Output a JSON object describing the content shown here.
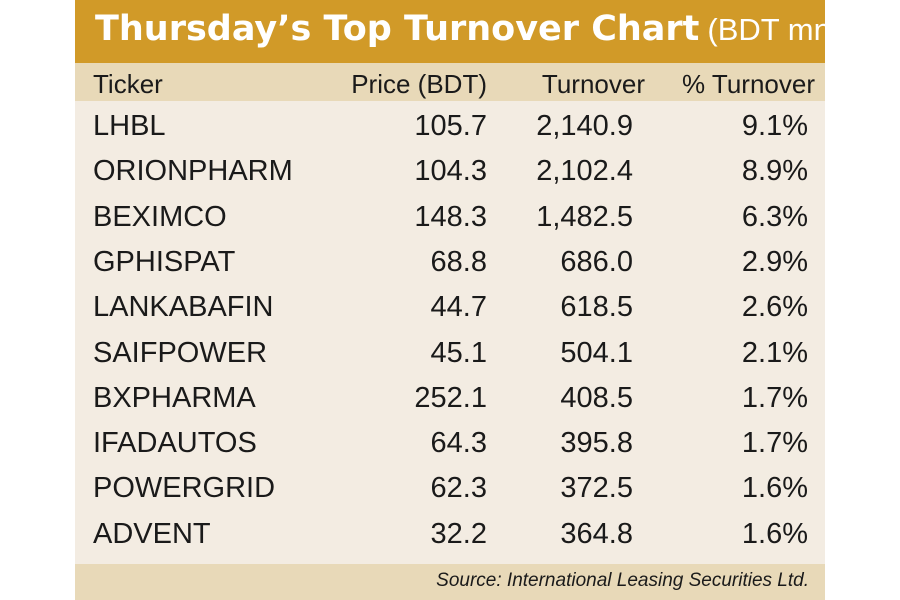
{
  "header": {
    "title": "Thursday’s Top Turnover Chart",
    "unit": "(BDT mn)"
  },
  "chart_data": {
    "type": "table",
    "title": "Thursday’s Top Turnover Chart",
    "unit": "(BDT mn)",
    "columns": [
      "Ticker",
      "Price (BDT)",
      "Turnover",
      "% Turnover"
    ],
    "rows": [
      [
        "LHBL",
        "105.7",
        "2,140.9",
        "9.1%"
      ],
      [
        "ORIONPHARM",
        "104.3",
        "2,102.4",
        "8.9%"
      ],
      [
        "BEXIMCO",
        "148.3",
        "1,482.5",
        "6.3%"
      ],
      [
        "GPHISPAT",
        "68.8",
        "686.0",
        "2.9%"
      ],
      [
        "LANKABAFIN",
        "44.7",
        "618.5",
        "2.6%"
      ],
      [
        "SAIFPOWER",
        "45.1",
        "504.1",
        "2.1%"
      ],
      [
        "BXPHARMA",
        "252.1",
        "408.5",
        "1.7%"
      ],
      [
        "IFADAUTOS",
        "64.3",
        "395.8",
        "1.7%"
      ],
      [
        "POWERGRID",
        "62.3",
        "372.5",
        "1.6%"
      ],
      [
        "ADVENT",
        "32.2",
        "364.8",
        "1.6%"
      ]
    ],
    "source": "Source:  International Leasing Securities Ltd."
  },
  "colors": {
    "title_bar": "#d19a28",
    "header_bar": "#e8d9b8",
    "background": "#f3ece2",
    "text": "#1a1a1a"
  }
}
